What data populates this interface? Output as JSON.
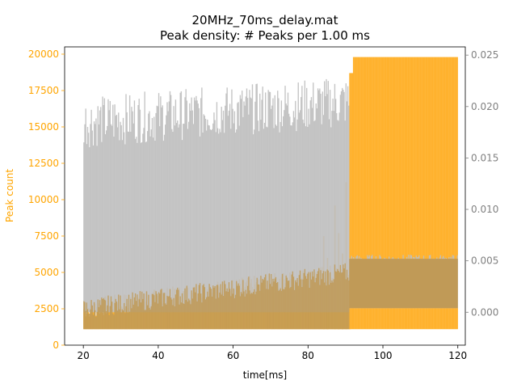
{
  "chart_data": {
    "type": "bar",
    "title": "20MHz_70ms_delay.mat",
    "subtitle": "Peak density: # Peaks per 1.00 ms",
    "xlabel": "time[ms]",
    "ylabel": "Peak count",
    "xlim": [
      15,
      122
    ],
    "ylim": [
      0,
      20500
    ],
    "y2lim": [
      -0.0032,
      0.0258
    ],
    "x_ticks": [
      "20",
      "40",
      "60",
      "80",
      "100",
      "120"
    ],
    "y_ticks": [
      "0",
      "2500",
      "5000",
      "7500",
      "10000",
      "12500",
      "15000",
      "17500",
      "20000"
    ],
    "y2_ticks": [
      "0.000",
      "0.005",
      "0.010",
      "0.015",
      "0.020",
      "0.025"
    ],
    "colors": {
      "peak_count": "#ffb22e",
      "secondary_series": "#bfbfbf",
      "overlap": "#c09a57",
      "left_axis": "#ffa500",
      "right_axis": "#808080"
    },
    "series": [
      {
        "axis": "left",
        "segments": [
          {
            "x_start": 20,
            "x_end": 91,
            "y_base": 1100,
            "y_start": 2500,
            "y_end": 5000,
            "noise": 700
          },
          {
            "x_start": 91,
            "x_end": 92,
            "y_base": 1100,
            "y_start": 18700,
            "y_end": 18700,
            "noise": 0
          },
          {
            "x_start": 92,
            "x_end": 120,
            "y_base": 1100,
            "y_start": 19800,
            "y_end": 19800,
            "noise": 0
          }
        ],
        "spikes": [
          {
            "x": 87,
            "y": 9600
          },
          {
            "x": 88,
            "y": 7700
          },
          {
            "x": 89,
            "y": 6300
          },
          {
            "x": 90,
            "y": 11200
          },
          {
            "x": 91,
            "y": 8900
          },
          {
            "x": 84,
            "y": 7500
          },
          {
            "x": 85,
            "y": 6000
          }
        ]
      },
      {
        "axis": "right",
        "segments": [
          {
            "x_start": 20,
            "x_end": 91,
            "y_base": 0,
            "y_start": 0.0185,
            "y_end": 0.0205,
            "noise": 0.0025
          },
          {
            "x_start": 91,
            "x_end": 120,
            "y_base": 0.0004,
            "y_start": 0.0052,
            "y_end": 0.0052,
            "noise": 0.0004
          }
        ]
      }
    ],
    "legend": "none",
    "grid": false
  }
}
